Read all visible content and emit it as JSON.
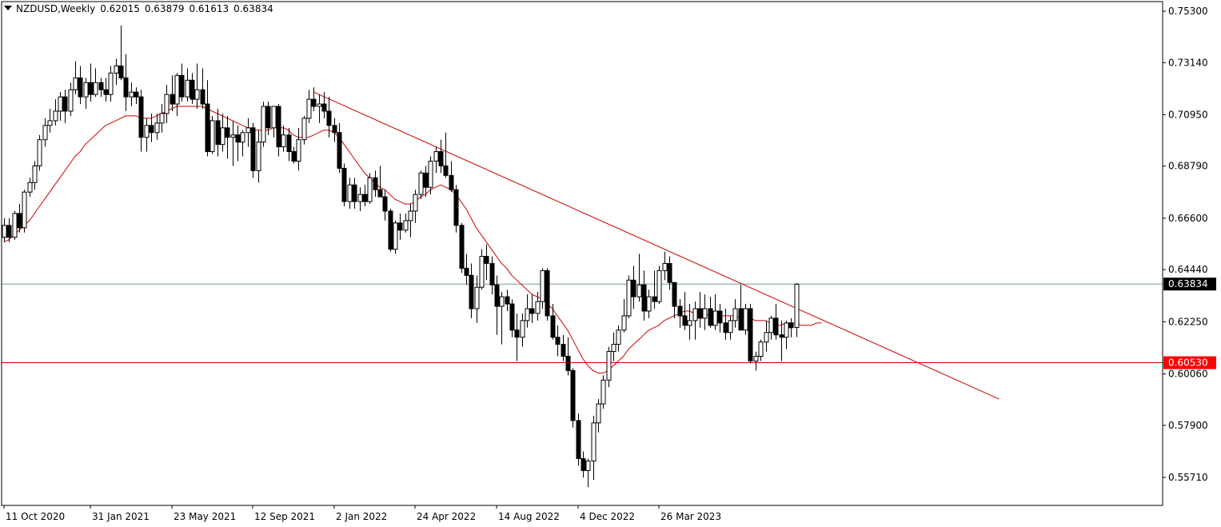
{
  "header": {
    "symbol": "NZDUSD,Weekly",
    "open": "0.62015",
    "high": "0.63879",
    "low": "0.61613",
    "close": "0.63834"
  },
  "colors": {
    "background": "#ffffff",
    "candle_bull_fill": "#ffffff",
    "candle_bear_fill": "#000000",
    "candle_outline": "#000000",
    "ma_line": "#d00000",
    "trendline": "#d00000",
    "support_line": "#d00000",
    "bid_line": "#7a9a9a",
    "support_badge": "#ff0000",
    "bid_badge": "#000000"
  },
  "chart_data": {
    "type": "candlestick",
    "instrument": "NZDUSD",
    "timeframe": "Weekly",
    "ylim": [
      0.55,
      0.753
    ],
    "y_ticks": [
      "0.75300",
      "0.73140",
      "0.70950",
      "0.68790",
      "0.66600",
      "0.64440",
      "0.62250",
      "0.60060",
      "0.57900",
      "0.55710"
    ],
    "x_ticks": [
      {
        "index": 0,
        "label": "11 Oct 2020"
      },
      {
        "index": 17,
        "label": "31 Jan 2021"
      },
      {
        "index": 33,
        "label": "23 May 2021"
      },
      {
        "index": 49,
        "label": "12 Sep 2021"
      },
      {
        "index": 65,
        "label": "2 Jan 2022"
      },
      {
        "index": 81,
        "label": "24 Apr 2022"
      },
      {
        "index": 97,
        "label": "14 Aug 2022"
      },
      {
        "index": 113,
        "label": "4 Dec 2022"
      },
      {
        "index": 129,
        "label": "26 Mar 2023"
      }
    ],
    "ohlc": [
      [
        0.658,
        0.666,
        0.656,
        0.663
      ],
      [
        0.663,
        0.666,
        0.656,
        0.658
      ],
      [
        0.658,
        0.669,
        0.657,
        0.668
      ],
      [
        0.668,
        0.672,
        0.66,
        0.662
      ],
      [
        0.662,
        0.678,
        0.66,
        0.677
      ],
      [
        0.677,
        0.683,
        0.675,
        0.681
      ],
      [
        0.681,
        0.69,
        0.678,
        0.688
      ],
      [
        0.688,
        0.701,
        0.686,
        0.699
      ],
      [
        0.699,
        0.708,
        0.696,
        0.705
      ],
      [
        0.705,
        0.712,
        0.702,
        0.707
      ],
      [
        0.707,
        0.716,
        0.705,
        0.711
      ],
      [
        0.711,
        0.719,
        0.707,
        0.717
      ],
      [
        0.717,
        0.72,
        0.706,
        0.711
      ],
      [
        0.711,
        0.723,
        0.709,
        0.72
      ],
      [
        0.72,
        0.732,
        0.718,
        0.725
      ],
      [
        0.725,
        0.73,
        0.714,
        0.717
      ],
      [
        0.717,
        0.725,
        0.712,
        0.723
      ],
      [
        0.723,
        0.731,
        0.715,
        0.718
      ],
      [
        0.718,
        0.729,
        0.717,
        0.723
      ],
      [
        0.723,
        0.725,
        0.717,
        0.72
      ],
      [
        0.72,
        0.725,
        0.715,
        0.718
      ],
      [
        0.718,
        0.73,
        0.715,
        0.727
      ],
      [
        0.727,
        0.733,
        0.722,
        0.73
      ],
      [
        0.73,
        0.747,
        0.724,
        0.725
      ],
      [
        0.725,
        0.735,
        0.711,
        0.717
      ],
      [
        0.717,
        0.723,
        0.713,
        0.719
      ],
      [
        0.719,
        0.721,
        0.714,
        0.717
      ],
      [
        0.717,
        0.72,
        0.694,
        0.7
      ],
      [
        0.7,
        0.708,
        0.694,
        0.705
      ],
      [
        0.705,
        0.71,
        0.698,
        0.702
      ],
      [
        0.702,
        0.71,
        0.699,
        0.706
      ],
      [
        0.706,
        0.714,
        0.702,
        0.71
      ],
      [
        0.71,
        0.722,
        0.706,
        0.718
      ],
      [
        0.718,
        0.726,
        0.711,
        0.714
      ],
      [
        0.714,
        0.727,
        0.709,
        0.726
      ],
      [
        0.726,
        0.731,
        0.715,
        0.717
      ],
      [
        0.717,
        0.729,
        0.715,
        0.724
      ],
      [
        0.724,
        0.727,
        0.714,
        0.716
      ],
      [
        0.716,
        0.731,
        0.712,
        0.72
      ],
      [
        0.72,
        0.729,
        0.712,
        0.714
      ],
      [
        0.714,
        0.724,
        0.692,
        0.694
      ],
      [
        0.694,
        0.709,
        0.693,
        0.707
      ],
      [
        0.707,
        0.712,
        0.692,
        0.697
      ],
      [
        0.697,
        0.71,
        0.694,
        0.704
      ],
      [
        0.704,
        0.709,
        0.691,
        0.7
      ],
      [
        0.7,
        0.707,
        0.688,
        0.701
      ],
      [
        0.701,
        0.705,
        0.69,
        0.698
      ],
      [
        0.698,
        0.703,
        0.692,
        0.702
      ],
      [
        0.702,
        0.708,
        0.696,
        0.704
      ],
      [
        0.704,
        0.706,
        0.683,
        0.686
      ],
      [
        0.686,
        0.703,
        0.681,
        0.698
      ],
      [
        0.698,
        0.715,
        0.696,
        0.713
      ],
      [
        0.713,
        0.715,
        0.701,
        0.704
      ],
      [
        0.704,
        0.713,
        0.7,
        0.713
      ],
      [
        0.713,
        0.714,
        0.692,
        0.696
      ],
      [
        0.696,
        0.705,
        0.694,
        0.701
      ],
      [
        0.701,
        0.704,
        0.69,
        0.694
      ],
      [
        0.694,
        0.696,
        0.689,
        0.69
      ],
      [
        0.69,
        0.704,
        0.686,
        0.699
      ],
      [
        0.699,
        0.709,
        0.697,
        0.708
      ],
      [
        0.708,
        0.72,
        0.706,
        0.716
      ],
      [
        0.716,
        0.721,
        0.711,
        0.713
      ],
      [
        0.713,
        0.718,
        0.706,
        0.714
      ],
      [
        0.714,
        0.719,
        0.708,
        0.711
      ],
      [
        0.711,
        0.717,
        0.7,
        0.705
      ],
      [
        0.705,
        0.708,
        0.698,
        0.702
      ],
      [
        0.702,
        0.706,
        0.685,
        0.687
      ],
      [
        0.687,
        0.689,
        0.671,
        0.673
      ],
      [
        0.673,
        0.683,
        0.67,
        0.68
      ],
      [
        0.68,
        0.683,
        0.67,
        0.673
      ],
      [
        0.673,
        0.679,
        0.669,
        0.676
      ],
      [
        0.676,
        0.68,
        0.671,
        0.673
      ],
      [
        0.673,
        0.685,
        0.672,
        0.683
      ],
      [
        0.683,
        0.686,
        0.675,
        0.678
      ],
      [
        0.678,
        0.688,
        0.676,
        0.675
      ],
      [
        0.675,
        0.678,
        0.665,
        0.669
      ],
      [
        0.669,
        0.67,
        0.652,
        0.653
      ],
      [
        0.653,
        0.665,
        0.651,
        0.664
      ],
      [
        0.664,
        0.668,
        0.657,
        0.661
      ],
      [
        0.661,
        0.668,
        0.66,
        0.665
      ],
      [
        0.665,
        0.672,
        0.658,
        0.669
      ],
      [
        0.669,
        0.678,
        0.664,
        0.676
      ],
      [
        0.676,
        0.686,
        0.674,
        0.685
      ],
      [
        0.685,
        0.688,
        0.675,
        0.679
      ],
      [
        0.679,
        0.692,
        0.676,
        0.69
      ],
      [
        0.69,
        0.696,
        0.685,
        0.694
      ],
      [
        0.694,
        0.699,
        0.685,
        0.688
      ],
      [
        0.688,
        0.702,
        0.683,
        0.684
      ],
      [
        0.684,
        0.69,
        0.677,
        0.678
      ],
      [
        0.678,
        0.68,
        0.66,
        0.663
      ],
      [
        0.663,
        0.664,
        0.643,
        0.645
      ],
      [
        0.645,
        0.651,
        0.638,
        0.642
      ],
      [
        0.642,
        0.647,
        0.624,
        0.628
      ],
      [
        0.628,
        0.642,
        0.622,
        0.637
      ],
      [
        0.637,
        0.653,
        0.636,
        0.65
      ],
      [
        0.65,
        0.655,
        0.64,
        0.647
      ],
      [
        0.647,
        0.65,
        0.634,
        0.638
      ],
      [
        0.638,
        0.642,
        0.617,
        0.629
      ],
      [
        0.629,
        0.635,
        0.613,
        0.633
      ],
      [
        0.633,
        0.636,
        0.627,
        0.63
      ],
      [
        0.63,
        0.632,
        0.616,
        0.619
      ],
      [
        0.619,
        0.626,
        0.606,
        0.616
      ],
      [
        0.616,
        0.626,
        0.612,
        0.623
      ],
      [
        0.623,
        0.634,
        0.62,
        0.628
      ],
      [
        0.628,
        0.634,
        0.622,
        0.626
      ],
      [
        0.626,
        0.635,
        0.623,
        0.631
      ],
      [
        0.631,
        0.645,
        0.628,
        0.644
      ],
      [
        0.644,
        0.645,
        0.623,
        0.625
      ],
      [
        0.625,
        0.63,
        0.615,
        0.616
      ],
      [
        0.616,
        0.621,
        0.608,
        0.613
      ],
      [
        0.613,
        0.617,
        0.606,
        0.608
      ],
      [
        0.608,
        0.616,
        0.6,
        0.602
      ],
      [
        0.602,
        0.603,
        0.578,
        0.581
      ],
      [
        0.581,
        0.584,
        0.562,
        0.565
      ],
      [
        0.565,
        0.568,
        0.557,
        0.56
      ],
      [
        0.56,
        0.565,
        0.553,
        0.564
      ],
      [
        0.564,
        0.583,
        0.556,
        0.58
      ],
      [
        0.58,
        0.59,
        0.576,
        0.588
      ],
      [
        0.588,
        0.6,
        0.586,
        0.598
      ],
      [
        0.598,
        0.612,
        0.595,
        0.61
      ],
      [
        0.61,
        0.618,
        0.606,
        0.613
      ],
      [
        0.613,
        0.621,
        0.61,
        0.619
      ],
      [
        0.619,
        0.632,
        0.618,
        0.625
      ],
      [
        0.625,
        0.642,
        0.624,
        0.64
      ],
      [
        0.64,
        0.646,
        0.628,
        0.633
      ],
      [
        0.633,
        0.651,
        0.631,
        0.638
      ],
      [
        0.638,
        0.644,
        0.623,
        0.627
      ],
      [
        0.627,
        0.636,
        0.624,
        0.633
      ],
      [
        0.633,
        0.644,
        0.628,
        0.631
      ],
      [
        0.631,
        0.646,
        0.63,
        0.644
      ],
      [
        0.644,
        0.652,
        0.64,
        0.647
      ],
      [
        0.647,
        0.65,
        0.636,
        0.639
      ],
      [
        0.639,
        0.638,
        0.624,
        0.629
      ],
      [
        0.629,
        0.632,
        0.62,
        0.625
      ],
      [
        0.625,
        0.635,
        0.619,
        0.621
      ],
      [
        0.621,
        0.63,
        0.615,
        0.623
      ],
      [
        0.623,
        0.631,
        0.615,
        0.628
      ],
      [
        0.628,
        0.635,
        0.62,
        0.624
      ],
      [
        0.624,
        0.634,
        0.619,
        0.628
      ],
      [
        0.628,
        0.633,
        0.62,
        0.621
      ],
      [
        0.621,
        0.634,
        0.619,
        0.627
      ],
      [
        0.627,
        0.63,
        0.618,
        0.622
      ],
      [
        0.622,
        0.628,
        0.615,
        0.618
      ],
      [
        0.618,
        0.625,
        0.615,
        0.623
      ],
      [
        0.623,
        0.632,
        0.62,
        0.628
      ],
      [
        0.628,
        0.638,
        0.621,
        0.619
      ],
      [
        0.619,
        0.63,
        0.617,
        0.628
      ],
      [
        0.628,
        0.63,
        0.605,
        0.606
      ],
      [
        0.606,
        0.61,
        0.602,
        0.608
      ],
      [
        0.608,
        0.615,
        0.606,
        0.614
      ],
      [
        0.614,
        0.623,
        0.61,
        0.618
      ],
      [
        0.618,
        0.625,
        0.615,
        0.624
      ],
      [
        0.624,
        0.63,
        0.615,
        0.617
      ],
      [
        0.617,
        0.623,
        0.606,
        0.616
      ],
      [
        0.616,
        0.623,
        0.611,
        0.622
      ],
      [
        0.622,
        0.624,
        0.616,
        0.62
      ],
      [
        0.6201,
        0.6388,
        0.6161,
        0.6383
      ]
    ],
    "moving_average": [
      0.656,
      0.657,
      0.659,
      0.661,
      0.663,
      0.665,
      0.668,
      0.671,
      0.674,
      0.677,
      0.68,
      0.683,
      0.686,
      0.689,
      0.692,
      0.694,
      0.697,
      0.699,
      0.701,
      0.703,
      0.705,
      0.706,
      0.707,
      0.708,
      0.709,
      0.709,
      0.709,
      0.708,
      0.708,
      0.708,
      0.709,
      0.71,
      0.711,
      0.712,
      0.713,
      0.713,
      0.713,
      0.713,
      0.713,
      0.713,
      0.712,
      0.711,
      0.71,
      0.709,
      0.708,
      0.707,
      0.706,
      0.705,
      0.704,
      0.703,
      0.703,
      0.703,
      0.703,
      0.704,
      0.704,
      0.704,
      0.703,
      0.701,
      0.7,
      0.7,
      0.7,
      0.701,
      0.702,
      0.703,
      0.703,
      0.702,
      0.7,
      0.697,
      0.694,
      0.691,
      0.688,
      0.685,
      0.683,
      0.681,
      0.679,
      0.678,
      0.676,
      0.674,
      0.673,
      0.672,
      0.672,
      0.673,
      0.675,
      0.676,
      0.678,
      0.679,
      0.68,
      0.679,
      0.678,
      0.676,
      0.673,
      0.67,
      0.666,
      0.662,
      0.659,
      0.656,
      0.653,
      0.65,
      0.647,
      0.645,
      0.642,
      0.64,
      0.638,
      0.636,
      0.634,
      0.633,
      0.632,
      0.63,
      0.628,
      0.625,
      0.622,
      0.619,
      0.615,
      0.611,
      0.607,
      0.604,
      0.602,
      0.601,
      0.601,
      0.602,
      0.604,
      0.606,
      0.608,
      0.611,
      0.613,
      0.615,
      0.617,
      0.619,
      0.62,
      0.621,
      0.623,
      0.624,
      0.625,
      0.626,
      0.627,
      0.627,
      0.626,
      0.626,
      0.626,
      0.625,
      0.625,
      0.625,
      0.625,
      0.625,
      0.625,
      0.624,
      0.624,
      0.624,
      0.623,
      0.623,
      0.623,
      0.622,
      0.621,
      0.621,
      0.622,
      0.622,
      0.622,
      0.621,
      0.621,
      0.621,
      0.622,
      0.622
    ],
    "trendline": {
      "from": [
        61,
        0.719
      ],
      "to": [
        196,
        0.59
      ]
    },
    "support_level": {
      "value": 0.6053,
      "label": "0.60530"
    },
    "current_price": {
      "value": 0.63834,
      "label": "0.63834"
    },
    "grid": false,
    "legend": "none"
  }
}
